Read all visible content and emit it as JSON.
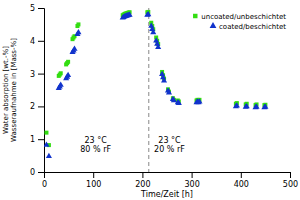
{
  "chart_data": {
    "type": "scatter",
    "xlabel": "Time/Zeit [h]",
    "ylabel": "Water absorption [wt.-%]\nWasseraufnahme in [Mass-%]",
    "xlim": [
      0,
      500
    ],
    "ylim": [
      0,
      5
    ],
    "xticks": [
      0,
      100,
      200,
      300,
      400,
      500
    ],
    "yticks": [
      0,
      1,
      2,
      3,
      4,
      5
    ],
    "grid": false,
    "legend": "upper right",
    "series": [
      {
        "name": "uncoated/unbeschichtet",
        "color": "#33dd11",
        "marker": "square",
        "x": [
          5,
          10,
          30,
          32,
          34,
          45,
          47,
          49,
          58,
          60,
          62,
          68,
          70,
          160,
          162,
          164,
          166,
          168,
          170,
          172,
          174,
          210,
          212,
          218,
          220,
          222,
          228,
          230,
          232,
          240,
          242,
          244,
          252,
          254,
          262,
          264,
          272,
          274,
          310,
          312,
          314,
          316,
          390,
          392,
          410,
          412,
          430,
          432,
          448,
          450
        ],
        "values": [
          1.2,
          0.82,
          2.93,
          2.97,
          3.01,
          3.28,
          3.32,
          3.36,
          4.05,
          4.1,
          4.14,
          4.45,
          4.5,
          4.78,
          4.8,
          4.82,
          4.83,
          4.84,
          4.85,
          4.86,
          4.87,
          4.87,
          4.88,
          4.55,
          4.45,
          4.35,
          4.1,
          4.0,
          3.9,
          3.05,
          2.95,
          2.85,
          2.52,
          2.45,
          2.25,
          2.2,
          2.18,
          2.15,
          2.18,
          2.2,
          2.18,
          2.2,
          2.08,
          2.1,
          2.06,
          2.08,
          2.04,
          2.06,
          2.04,
          2.05
        ]
      },
      {
        "name": "coated/beschichtet",
        "color": "#1133cc",
        "marker": "triangle",
        "x": [
          5,
          10,
          30,
          32,
          34,
          45,
          47,
          49,
          58,
          60,
          62,
          68,
          70,
          160,
          162,
          164,
          166,
          168,
          170,
          172,
          174,
          210,
          212,
          218,
          220,
          222,
          228,
          230,
          232,
          240,
          242,
          244,
          252,
          254,
          262,
          264,
          272,
          274,
          310,
          312,
          314,
          316,
          390,
          392,
          410,
          412,
          430,
          432,
          448,
          450
        ],
        "values": [
          0.82,
          0.48,
          2.55,
          2.6,
          2.65,
          2.85,
          2.9,
          2.95,
          3.65,
          3.7,
          3.75,
          4.2,
          4.25,
          4.7,
          4.72,
          4.74,
          4.75,
          4.76,
          4.77,
          4.78,
          4.79,
          4.79,
          4.8,
          4.45,
          4.35,
          4.25,
          4.0,
          3.9,
          3.8,
          2.98,
          2.88,
          2.78,
          2.48,
          2.42,
          2.22,
          2.18,
          2.12,
          2.1,
          2.12,
          2.14,
          2.12,
          2.14,
          2.0,
          2.02,
          1.98,
          2.0,
          1.97,
          1.98,
          1.97,
          1.98
        ]
      }
    ],
    "reference_lines": [
      {
        "x": 213,
        "color": "#888888",
        "line_style": "dashed"
      }
    ],
    "annotations": [
      {
        "text": "23 °C\n80 % rF",
        "x": 105,
        "y": 0.55
      },
      {
        "text": "23 °C\n20 % rF",
        "x": 255,
        "y": 0.55
      }
    ]
  }
}
